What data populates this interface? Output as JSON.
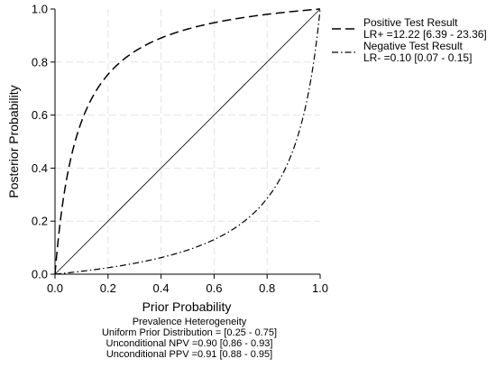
{
  "chart_data": {
    "type": "line",
    "xlabel": "Prior Probability",
    "ylabel": "Posterior Probability",
    "xlim": [
      0,
      1
    ],
    "ylim": [
      0,
      1
    ],
    "x_ticks": [
      "0.0",
      "0.2",
      "0.4",
      "0.6",
      "0.8",
      "1.0"
    ],
    "y_ticks": [
      "0.0",
      "0.2",
      "0.4",
      "0.6",
      "0.8",
      "1.0"
    ],
    "grid": true,
    "legend_position": "right",
    "series": [
      {
        "name": "Positive Test Result",
        "name_detail": "LR+ =12.22 [6.39 - 23.36]",
        "lr": 12.22,
        "style": "dashed",
        "color": "#000000"
      },
      {
        "name": "Negative Test Result",
        "name_detail": "LR- =0.10 [0.07 - 0.15]",
        "lr": 0.1,
        "style": "dash-dot",
        "color": "#000000"
      }
    ],
    "reference_line": {
      "x": [
        0,
        1
      ],
      "y": [
        0,
        1
      ],
      "style": "solid"
    },
    "annotations": [
      "Prevalence Heterogeneity",
      "Uniform Prior Distribution = [0.25 - 0.75]",
      "Unconditional NPV =0.90 [0.86 - 0.93]",
      "Unconditional PPV =0.91 [0.88 - 0.95]"
    ]
  }
}
